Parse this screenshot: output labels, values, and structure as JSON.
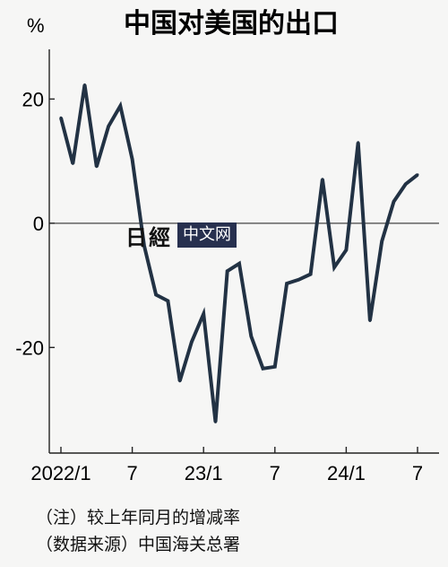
{
  "chart_data": {
    "type": "line",
    "title": "中国对美国的出口",
    "unit_label": "%",
    "ylim": [
      -37,
      28
    ],
    "yticks": [
      20,
      0,
      -20
    ],
    "ytick_labels": [
      "20",
      "0",
      "-20"
    ],
    "zero_line": true,
    "grid": false,
    "legend": "none",
    "xticks": [
      {
        "label": "2022/1",
        "index": 0
      },
      {
        "label": "7",
        "index": 6
      },
      {
        "label": "23/1",
        "index": 12
      },
      {
        "label": "7",
        "index": 18
      },
      {
        "label": "24/1",
        "index": 24
      },
      {
        "label": "7",
        "index": 30
      }
    ],
    "x": [
      "2022/1",
      "2022/2",
      "2022/3",
      "2022/4",
      "2022/5",
      "2022/6",
      "2022/7",
      "2022/8",
      "2022/9",
      "2022/10",
      "2022/11",
      "2022/12",
      "2023/1",
      "2023/2",
      "2023/3",
      "2023/4",
      "2023/5",
      "2023/6",
      "2023/7",
      "2023/8",
      "2023/9",
      "2023/10",
      "2023/11",
      "2023/12",
      "2024/1",
      "2024/2",
      "2024/3",
      "2024/4",
      "2024/5",
      "2024/6",
      "2024/7"
    ],
    "series": [
      {
        "values": [
          17,
          9.6,
          22.3,
          9.1,
          15.6,
          18.9,
          10.3,
          -3.6,
          -11.5,
          -12.5,
          -25.4,
          -19.1,
          -14.6,
          -32.0,
          -7.7,
          -6.5,
          -18.2,
          -23.4,
          -23.1,
          -9.7,
          -9.1,
          -8.2,
          7.1,
          -7.1,
          -4.3,
          13.0,
          -15.7,
          -2.9,
          3.5,
          6.3,
          7.8
        ]
      }
    ],
    "colors": {
      "line": "#223244",
      "axis": "#222222",
      "zero_line": "#444444"
    }
  },
  "notes": {
    "note1": "（注）较上年同月的增减率",
    "note2": "（数据来源）中国海关总署"
  },
  "watermark": {
    "logo": "日經",
    "box": "中文网"
  }
}
